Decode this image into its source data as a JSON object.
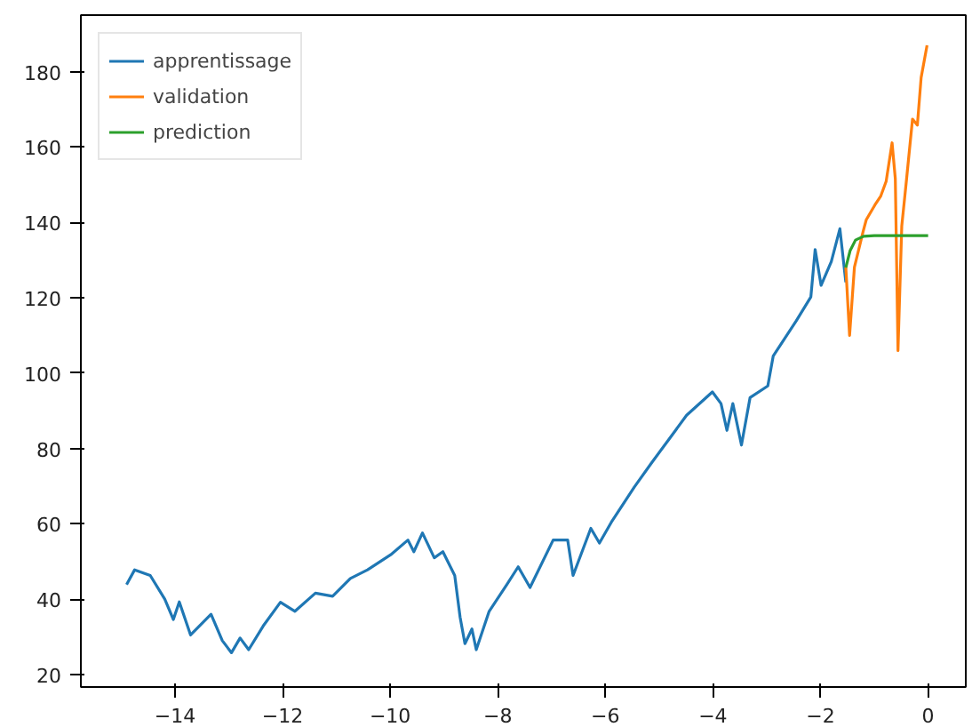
{
  "chart_data": {
    "type": "line",
    "legend": "top left",
    "grid": false,
    "xlim": [
      -15.75,
      0.7
    ],
    "ylim": [
      16.7,
      195
    ],
    "xticks": [
      {
        "value": -14,
        "label": "−14"
      },
      {
        "value": -12,
        "label": "−12"
      },
      {
        "value": -10,
        "label": "−10"
      },
      {
        "value": -8,
        "label": "−8"
      },
      {
        "value": -6,
        "label": "−6"
      },
      {
        "value": -4,
        "label": "−4"
      },
      {
        "value": -2,
        "label": "−2"
      },
      0
    ],
    "yticks": [
      20,
      40,
      60,
      80,
      100,
      120,
      140,
      160,
      180
    ],
    "series": [
      {
        "name": "apprentissage",
        "color": "#1f77b4",
        "x": [
          -14.9,
          -14.75,
          -14.46,
          -14.19,
          -14.03,
          -13.92,
          -13.71,
          -13.33,
          -13.12,
          -12.95,
          -12.79,
          -12.63,
          -12.36,
          -12.04,
          -11.77,
          -11.39,
          -11.07,
          -10.74,
          -10.42,
          -9.99,
          -9.67,
          -9.56,
          -9.4,
          -9.18,
          -9.02,
          -8.8,
          -8.7,
          -8.61,
          -8.48,
          -8.4,
          -8.16,
          -7.83,
          -7.62,
          -7.4,
          -6.97,
          -6.7,
          -6.6,
          -6.27,
          -6.11,
          -5.89,
          -5.46,
          -5.14,
          -4.82,
          -4.49,
          -4.01,
          -3.85,
          -3.74,
          -3.63,
          -3.47,
          -3.31,
          -2.98,
          -2.88,
          -2.45,
          -2.18,
          -2.1,
          -1.99,
          -1.8,
          -1.64,
          -1.53
        ],
        "values": [
          43.9,
          47.8,
          46.3,
          40,
          34.6,
          39.3,
          30.5,
          36,
          29,
          25.8,
          29.7,
          26.6,
          32.9,
          39.2,
          36.8,
          41.6,
          40.8,
          45.5,
          47.8,
          51.8,
          55.7,
          52.6,
          57.6,
          51,
          52.6,
          46.3,
          35.2,
          28.2,
          32.1,
          26.6,
          36.8,
          43.9,
          48.6,
          43.1,
          55.7,
          55.7,
          46.3,
          58.8,
          54.9,
          60.4,
          69.8,
          76.2,
          82.4,
          88.8,
          95,
          91.9,
          84.8,
          91.9,
          80.9,
          93.5,
          96.6,
          104.5,
          113.9,
          120.2,
          132.8,
          123.3,
          129.6,
          138.3,
          124.1
        ]
      },
      {
        "name": "validation",
        "color": "#ff7f0e",
        "x": [
          -1.53,
          -1.46,
          -1.37,
          -1.21,
          -1.15,
          -0.99,
          -0.88,
          -0.78,
          -0.67,
          -0.61,
          -0.56,
          -0.49,
          -0.4,
          -0.29,
          -0.2,
          -0.13,
          -0.02
        ],
        "values": [
          128.1,
          110,
          128.1,
          137.5,
          140.7,
          144.6,
          147,
          150.9,
          161.1,
          151.6,
          106,
          139,
          151.6,
          167.4,
          165.8,
          178.4,
          187
        ]
      },
      {
        "name": "prediction",
        "color": "#2ca02c",
        "x": [
          -1.53,
          -1.45,
          -1.35,
          -1.2,
          -1,
          0
        ],
        "values": [
          128,
          132.5,
          135.3,
          136.3,
          136.5,
          136.5
        ]
      }
    ]
  }
}
